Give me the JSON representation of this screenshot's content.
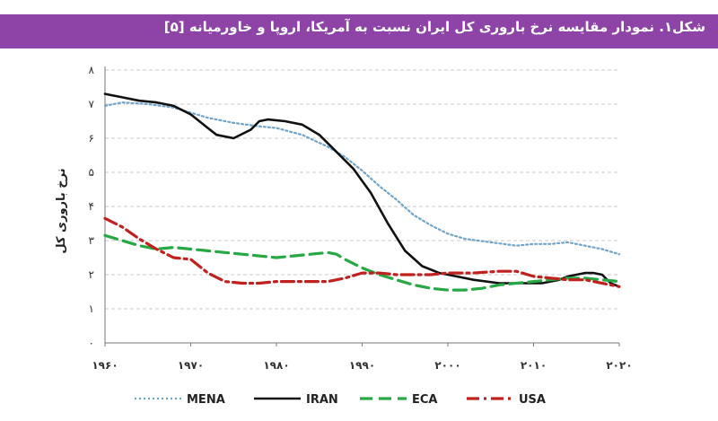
{
  "header": {
    "title": "شکل۱. نمودار مقایسه نرخ باروری کل ایران نسبت به آمریکا، اروپا و خاورمیانه [۵]",
    "banner_color": "#8e44a6"
  },
  "chart_data": {
    "type": "line",
    "title": "",
    "xlabel": "",
    "ylabel": "نرخ باروری کل",
    "xlim": [
      1960,
      2020
    ],
    "ylim": [
      0,
      8
    ],
    "x_ticks": [
      1960,
      1970,
      1980,
      1990,
      2000,
      2010,
      2020
    ],
    "x_tick_labels": [
      "۱۹۶۰",
      "۱۹۷۰",
      "۱۹۸۰",
      "۱۹۹۰",
      "۲۰۰۰",
      "۲۰۱۰",
      "۲۰۲۰"
    ],
    "y_ticks": [
      0,
      1,
      2,
      3,
      4,
      5,
      6,
      7,
      8
    ],
    "y_tick_labels": [
      "۰",
      "۱",
      "۲",
      "۳",
      "۴",
      "۵",
      "۶",
      "۷",
      "۸"
    ],
    "grid": true,
    "legend_position": "bottom",
    "series": [
      {
        "name": "MENA",
        "color": "#6fa3c9",
        "style": "dotted",
        "points": [
          [
            1960,
            6.95
          ],
          [
            1962,
            7.05
          ],
          [
            1965,
            7.0
          ],
          [
            1968,
            6.9
          ],
          [
            1970,
            6.75
          ],
          [
            1972,
            6.6
          ],
          [
            1975,
            6.45
          ],
          [
            1978,
            6.35
          ],
          [
            1980,
            6.3
          ],
          [
            1983,
            6.1
          ],
          [
            1986,
            5.75
          ],
          [
            1988,
            5.45
          ],
          [
            1990,
            5.05
          ],
          [
            1992,
            4.6
          ],
          [
            1994,
            4.2
          ],
          [
            1996,
            3.75
          ],
          [
            1998,
            3.45
          ],
          [
            2000,
            3.2
          ],
          [
            2002,
            3.05
          ],
          [
            2005,
            2.95
          ],
          [
            2008,
            2.85
          ],
          [
            2010,
            2.9
          ],
          [
            2012,
            2.9
          ],
          [
            2014,
            2.95
          ],
          [
            2016,
            2.85
          ],
          [
            2018,
            2.75
          ],
          [
            2020,
            2.6
          ]
        ]
      },
      {
        "name": "IRAN",
        "color": "#111111",
        "style": "solid",
        "points": [
          [
            1960,
            7.3
          ],
          [
            1962,
            7.2
          ],
          [
            1964,
            7.1
          ],
          [
            1966,
            7.05
          ],
          [
            1968,
            6.95
          ],
          [
            1970,
            6.7
          ],
          [
            1972,
            6.3
          ],
          [
            1973,
            6.1
          ],
          [
            1975,
            6.0
          ],
          [
            1977,
            6.25
          ],
          [
            1978,
            6.5
          ],
          [
            1979,
            6.55
          ],
          [
            1981,
            6.5
          ],
          [
            1983,
            6.4
          ],
          [
            1985,
            6.1
          ],
          [
            1987,
            5.6
          ],
          [
            1989,
            5.1
          ],
          [
            1991,
            4.4
          ],
          [
            1993,
            3.5
          ],
          [
            1995,
            2.7
          ],
          [
            1997,
            2.25
          ],
          [
            1999,
            2.05
          ],
          [
            2001,
            1.95
          ],
          [
            2003,
            1.85
          ],
          [
            2006,
            1.75
          ],
          [
            2009,
            1.75
          ],
          [
            2011,
            1.75
          ],
          [
            2013,
            1.85
          ],
          [
            2014,
            1.95
          ],
          [
            2016,
            2.05
          ],
          [
            2017,
            2.05
          ],
          [
            2018,
            2.0
          ],
          [
            2019,
            1.75
          ],
          [
            2020,
            1.65
          ]
        ]
      },
      {
        "name": "ECA",
        "color": "#27a845",
        "style": "dashed",
        "points": [
          [
            1960,
            3.15
          ],
          [
            1962,
            3.0
          ],
          [
            1964,
            2.85
          ],
          [
            1966,
            2.75
          ],
          [
            1968,
            2.8
          ],
          [
            1970,
            2.75
          ],
          [
            1972,
            2.7
          ],
          [
            1974,
            2.65
          ],
          [
            1976,
            2.6
          ],
          [
            1978,
            2.55
          ],
          [
            1980,
            2.5
          ],
          [
            1982,
            2.55
          ],
          [
            1984,
            2.6
          ],
          [
            1986,
            2.65
          ],
          [
            1987,
            2.6
          ],
          [
            1988,
            2.45
          ],
          [
            1990,
            2.2
          ],
          [
            1992,
            2.0
          ],
          [
            1994,
            1.85
          ],
          [
            1996,
            1.7
          ],
          [
            1998,
            1.6
          ],
          [
            2000,
            1.55
          ],
          [
            2002,
            1.55
          ],
          [
            2004,
            1.6
          ],
          [
            2006,
            1.7
          ],
          [
            2008,
            1.75
          ],
          [
            2010,
            1.8
          ],
          [
            2012,
            1.85
          ],
          [
            2014,
            1.9
          ],
          [
            2016,
            1.9
          ],
          [
            2018,
            1.85
          ],
          [
            2020,
            1.8
          ]
        ]
      },
      {
        "name": "USA",
        "color": "#c0211f",
        "style": "dashdot",
        "points": [
          [
            1960,
            3.65
          ],
          [
            1962,
            3.4
          ],
          [
            1964,
            3.05
          ],
          [
            1966,
            2.75
          ],
          [
            1968,
            2.5
          ],
          [
            1970,
            2.45
          ],
          [
            1972,
            2.05
          ],
          [
            1974,
            1.8
          ],
          [
            1976,
            1.75
          ],
          [
            1978,
            1.75
          ],
          [
            1980,
            1.8
          ],
          [
            1983,
            1.8
          ],
          [
            1986,
            1.8
          ],
          [
            1988,
            1.9
          ],
          [
            1990,
            2.05
          ],
          [
            1992,
            2.05
          ],
          [
            1994,
            2.0
          ],
          [
            1996,
            2.0
          ],
          [
            1998,
            2.0
          ],
          [
            2000,
            2.05
          ],
          [
            2003,
            2.05
          ],
          [
            2006,
            2.1
          ],
          [
            2008,
            2.1
          ],
          [
            2010,
            1.95
          ],
          [
            2012,
            1.9
          ],
          [
            2014,
            1.85
          ],
          [
            2016,
            1.85
          ],
          [
            2018,
            1.75
          ],
          [
            2020,
            1.65
          ]
        ]
      }
    ]
  }
}
